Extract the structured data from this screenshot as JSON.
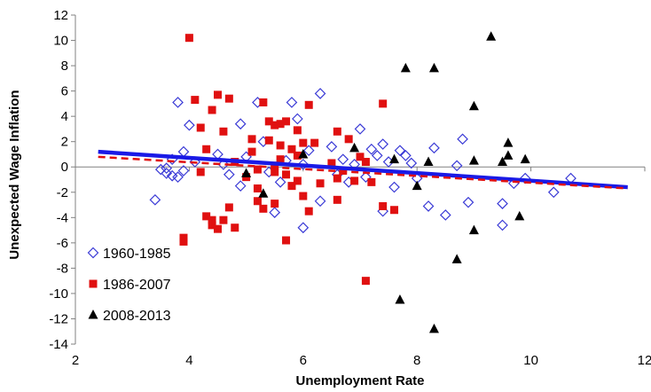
{
  "chart_data": {
    "type": "scatter",
    "title": "",
    "xlabel": "Unemployment Rate",
    "ylabel": "Unexpected Wage Inflation",
    "xlim": [
      2,
      12
    ],
    "ylim": [
      -14,
      12
    ],
    "xticks": [
      2,
      4,
      6,
      8,
      10,
      12
    ],
    "yticks": [
      12,
      10,
      8,
      6,
      4,
      2,
      0,
      -2,
      -4,
      -6,
      -8,
      -10,
      -12,
      -14
    ],
    "grid": false,
    "legend_position": "bottom-left",
    "series": [
      {
        "name": "1960-1985",
        "marker": "diamond-open",
        "color": "#3a3ad6",
        "points": [
          [
            3.4,
            -2.6
          ],
          [
            3.5,
            -0.2
          ],
          [
            3.6,
            -0.5
          ],
          [
            3.7,
            0.6
          ],
          [
            3.8,
            5.1
          ],
          [
            3.8,
            -0.8
          ],
          [
            3.9,
            -0.3
          ],
          [
            3.9,
            1.2
          ],
          [
            4.0,
            3.3
          ],
          [
            4.1,
            0.4
          ],
          [
            3.7,
            -0.7
          ],
          [
            3.6,
            -0.1
          ],
          [
            4.5,
            1.0
          ],
          [
            4.6,
            0.2
          ],
          [
            4.7,
            -0.6
          ],
          [
            4.9,
            3.4
          ],
          [
            4.9,
            -1.5
          ],
          [
            5.0,
            0.8
          ],
          [
            5.2,
            5.1
          ],
          [
            5.3,
            2.0
          ],
          [
            5.4,
            -0.4
          ],
          [
            5.5,
            -3.6
          ],
          [
            5.6,
            -1.2
          ],
          [
            5.7,
            0.5
          ],
          [
            5.8,
            5.1
          ],
          [
            5.9,
            3.8
          ],
          [
            6.0,
            -4.8
          ],
          [
            6.0,
            0.2
          ],
          [
            6.1,
            1.3
          ],
          [
            6.3,
            5.8
          ],
          [
            6.3,
            -2.7
          ],
          [
            6.5,
            1.6
          ],
          [
            6.6,
            -0.6
          ],
          [
            6.7,
            0.6
          ],
          [
            6.8,
            -1.2
          ],
          [
            6.9,
            0.2
          ],
          [
            7.0,
            3.0
          ],
          [
            7.1,
            -0.8
          ],
          [
            7.2,
            1.4
          ],
          [
            7.3,
            0.9
          ],
          [
            7.4,
            -3.5
          ],
          [
            7.4,
            1.8
          ],
          [
            7.5,
            0.4
          ],
          [
            7.6,
            -1.6
          ],
          [
            7.7,
            1.3
          ],
          [
            7.8,
            0.9
          ],
          [
            7.9,
            0.3
          ],
          [
            8.0,
            -0.9
          ],
          [
            8.2,
            -3.1
          ],
          [
            8.3,
            1.5
          ],
          [
            8.5,
            -3.8
          ],
          [
            8.7,
            0.1
          ],
          [
            8.8,
            2.2
          ],
          [
            8.9,
            -2.8
          ],
          [
            9.5,
            -2.9
          ],
          [
            9.5,
            -4.6
          ],
          [
            9.7,
            -1.3
          ],
          [
            9.9,
            -0.9
          ],
          [
            10.4,
            -2.0
          ],
          [
            10.7,
            -0.9
          ]
        ]
      },
      {
        "name": "1986-2007",
        "marker": "square",
        "color": "#e01010",
        "points": [
          [
            3.9,
            -5.9
          ],
          [
            3.9,
            -5.6
          ],
          [
            4.0,
            10.2
          ],
          [
            4.1,
            5.3
          ],
          [
            4.2,
            -0.4
          ],
          [
            4.2,
            3.1
          ],
          [
            4.3,
            1.4
          ],
          [
            4.3,
            -3.9
          ],
          [
            4.4,
            -4.2
          ],
          [
            4.4,
            -4.6
          ],
          [
            4.4,
            4.5
          ],
          [
            4.5,
            -4.9
          ],
          [
            4.5,
            5.7
          ],
          [
            4.6,
            -4.2
          ],
          [
            4.6,
            2.8
          ],
          [
            4.7,
            5.4
          ],
          [
            4.7,
            -3.2
          ],
          [
            4.8,
            0.4
          ],
          [
            4.8,
            -4.8
          ],
          [
            5.0,
            -0.8
          ],
          [
            5.1,
            1.2
          ],
          [
            5.1,
            2.2
          ],
          [
            5.2,
            -1.7
          ],
          [
            5.2,
            -2.7
          ],
          [
            5.3,
            -3.3
          ],
          [
            5.3,
            5.1
          ],
          [
            5.4,
            3.6
          ],
          [
            5.4,
            2.1
          ],
          [
            5.5,
            3.3
          ],
          [
            5.5,
            -0.4
          ],
          [
            5.5,
            -2.9
          ],
          [
            5.6,
            1.7
          ],
          [
            5.6,
            3.4
          ],
          [
            5.6,
            0.6
          ],
          [
            5.7,
            -5.8
          ],
          [
            5.7,
            -0.6
          ],
          [
            5.7,
            3.6
          ],
          [
            5.8,
            1.4
          ],
          [
            5.8,
            -1.5
          ],
          [
            5.9,
            0.9
          ],
          [
            5.9,
            -1.1
          ],
          [
            5.9,
            2.9
          ],
          [
            6.0,
            1.9
          ],
          [
            6.0,
            -2.3
          ],
          [
            6.1,
            -3.5
          ],
          [
            6.1,
            4.9
          ],
          [
            6.2,
            1.9
          ],
          [
            6.3,
            -1.3
          ],
          [
            6.6,
            2.8
          ],
          [
            6.6,
            -2.6
          ],
          [
            6.7,
            -0.3
          ],
          [
            6.8,
            2.2
          ],
          [
            6.9,
            -1.1
          ],
          [
            7.0,
            0.8
          ],
          [
            7.1,
            0.4
          ],
          [
            7.1,
            -9.0
          ],
          [
            7.2,
            -1.2
          ],
          [
            7.4,
            5.0
          ],
          [
            7.4,
            -3.1
          ],
          [
            7.6,
            -3.4
          ],
          [
            6.5,
            0.3
          ],
          [
            6.6,
            -0.9
          ],
          [
            5.5,
            0.1
          ],
          [
            5.2,
            -0.2
          ]
        ]
      },
      {
        "name": "2008-2013",
        "marker": "triangle",
        "color": "#000000",
        "points": [
          [
            5.0,
            -0.5
          ],
          [
            5.3,
            -2.1
          ],
          [
            6.0,
            1.0
          ],
          [
            6.9,
            1.5
          ],
          [
            7.6,
            0.6
          ],
          [
            7.7,
            -10.5
          ],
          [
            7.8,
            7.8
          ],
          [
            8.0,
            -1.5
          ],
          [
            8.2,
            0.4
          ],
          [
            8.3,
            7.8
          ],
          [
            8.3,
            -12.8
          ],
          [
            8.7,
            -7.3
          ],
          [
            9.0,
            4.8
          ],
          [
            9.0,
            -5.0
          ],
          [
            9.0,
            0.5
          ],
          [
            9.3,
            10.3
          ],
          [
            9.5,
            0.4
          ],
          [
            9.6,
            1.9
          ],
          [
            9.6,
            0.9
          ],
          [
            9.8,
            -3.9
          ],
          [
            9.9,
            0.6
          ]
        ]
      }
    ],
    "trendlines": [
      {
        "style": "solid",
        "color": "#1a1ae6",
        "x": [
          2.4,
          11.7
        ],
        "y": [
          1.2,
          -1.6
        ]
      },
      {
        "style": "dashed",
        "color": "#e01010",
        "x": [
          2.4,
          11.7
        ],
        "y": [
          0.8,
          -1.7
        ]
      }
    ]
  }
}
